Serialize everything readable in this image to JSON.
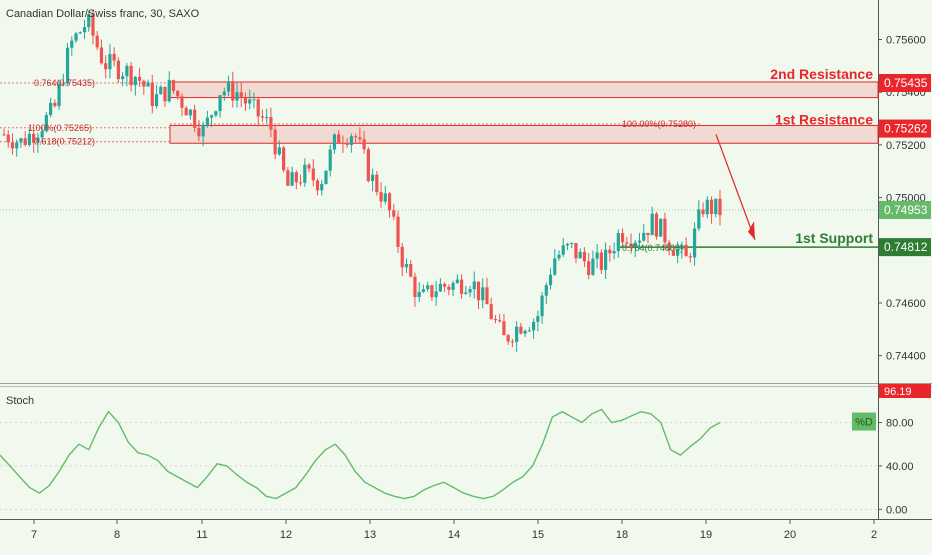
{
  "header": {
    "title": "Canadian Dollar/Swiss franc, 30, SAXO"
  },
  "colors": {
    "up": "#26a69a",
    "down": "#ef5350",
    "resistance": "#e8262b",
    "support": "#2e7d32",
    "current": "#66bb6a",
    "stoch": "#66bb6a"
  },
  "chart_data": [
    {
      "type": "candlestick",
      "title": "Canadian Dollar/Swiss franc, 30, SAXO",
      "ylim": [
        0.743,
        0.7575
      ],
      "y_ticks": [
        0.744,
        0.746,
        0.748,
        0.75,
        0.752,
        0.754,
        0.756
      ],
      "y_tick_labels": [
        "0.74400",
        "0.74600",
        "0.74800",
        "0.75000",
        "0.75200",
        "0.75400",
        "0.75600"
      ],
      "x_ticks": [
        "7",
        "8",
        "11",
        "12",
        "13",
        "14",
        "15",
        "18",
        "19",
        "20",
        "2"
      ],
      "path_close": [
        0.7524,
        0.7521,
        0.7526,
        0.7533,
        0.7558,
        0.7567,
        0.7551,
        0.7549,
        0.7546,
        0.7537,
        0.7542,
        0.7534,
        0.7525,
        0.7541,
        0.754,
        0.7533,
        0.7527,
        0.7504,
        0.7509,
        0.7506,
        0.7523,
        0.7525,
        0.7508,
        0.7498,
        0.7475,
        0.7461,
        0.7466,
        0.7467,
        0.7469,
        0.7459,
        0.7446,
        0.7452,
        0.7454,
        0.7477,
        0.7481,
        0.7475,
        0.7475,
        0.7487,
        0.7485,
        0.7491,
        0.7483,
        0.7476,
        0.7497,
        0.7495
      ],
      "levels": [
        {
          "label": "2nd Resistance",
          "value": 0.75435,
          "tag": "0.75435"
        },
        {
          "label": "1st Resistance",
          "value": 0.75262,
          "tag": "0.75262"
        },
        {
          "label": "1st Support",
          "value": 0.74812,
          "tag": "0.74812"
        }
      ],
      "current_price": {
        "value": 0.74953,
        "tag": "0.74953"
      },
      "fib_labels": [
        {
          "text": "0.764(0.75435)",
          "value": 0.75435
        },
        {
          "text": "1.00%(0.75265)",
          "value": 0.75265
        },
        {
          "text": "0.618(0.75212)",
          "value": 0.75212
        },
        {
          "text": "100.00%(0.75280)",
          "value": 0.7528
        },
        {
          "text": "0.764(0.74808)",
          "value": 0.74808
        }
      ]
    },
    {
      "type": "line",
      "title": "Stoch",
      "ylim": [
        -8,
        110
      ],
      "y_ticks": [
        0,
        40,
        80
      ],
      "y_tick_labels": [
        "0.00",
        "40.00",
        "80.00"
      ],
      "series": [
        {
          "name": "%D",
          "values": [
            50,
            40,
            30,
            20,
            15,
            22,
            35,
            50,
            60,
            55,
            75,
            90,
            80,
            62,
            52,
            50,
            45,
            35,
            30,
            25,
            20,
            30,
            42,
            40,
            32,
            25,
            20,
            12,
            10,
            15,
            20,
            32,
            45,
            55,
            60,
            50,
            35,
            25,
            20,
            15,
            12,
            10,
            12,
            18,
            22,
            25,
            20,
            15,
            12,
            10,
            12,
            18,
            25,
            30,
            40,
            60,
            85,
            90,
            85,
            80,
            88,
            92,
            80,
            82,
            86,
            90,
            88,
            80,
            55,
            50,
            58,
            65,
            75,
            80
          ]
        }
      ],
      "label_tags": [
        {
          "text": "96.19",
          "value": 96.19
        },
        {
          "text": "%D",
          "value": 80
        }
      ]
    }
  ]
}
